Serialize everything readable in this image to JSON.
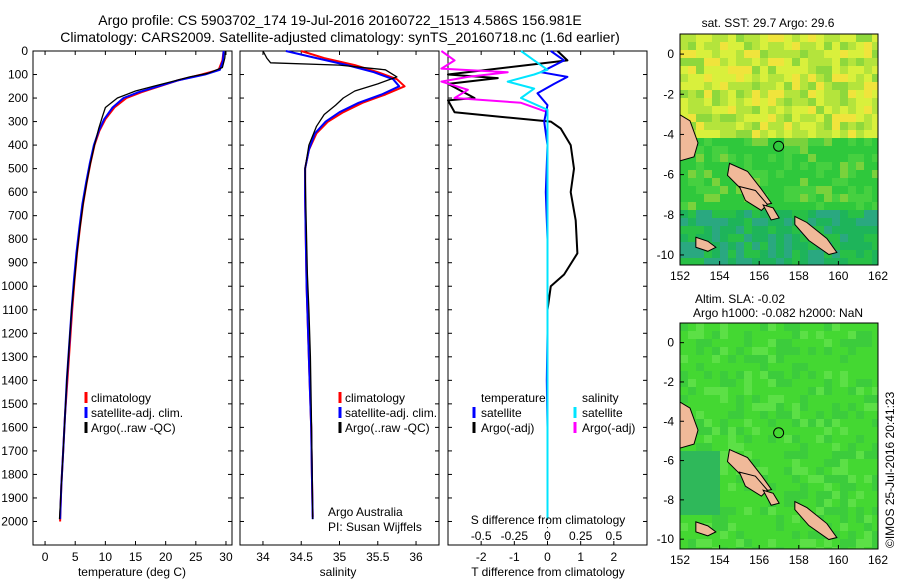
{
  "titles": {
    "line1": "Argo profile: CS 5903702_174 19-Jul-2016 20160722_1513 4.586S 156.981E",
    "line2": "Climatology: CARS2009. Satellite-adjusted climatology: synTS_20160718.nc (1.6d earlier)"
  },
  "colors": {
    "climatology": "#ff0000",
    "satellite": "#0000ff",
    "argo": "#000000",
    "sal_satellite": "#00e5ff",
    "sal_argo": "#ff00ff",
    "land": "#f0b999",
    "map_sst_base": "#7fd23c",
    "map_sla_base": "#44d832"
  },
  "depth_axis": {
    "ticks": [
      0,
      100,
      200,
      300,
      400,
      500,
      600,
      700,
      800,
      900,
      1000,
      1100,
      1200,
      1300,
      1400,
      1500,
      1600,
      1700,
      1800,
      1900,
      2000
    ],
    "ylim": [
      0,
      2100
    ]
  },
  "panels": {
    "temperature": {
      "xlabel": "temperature (deg C)",
      "xticks": [
        0,
        5,
        10,
        15,
        20,
        25,
        30
      ],
      "xlim": [
        -2,
        31
      ],
      "legend": [
        "climatology",
        "satellite-adj. clim.",
        "Argo(..raw -QC)"
      ]
    },
    "salinity": {
      "xlabel": "salinity",
      "xticks": [
        34,
        34.5,
        35,
        35.5,
        36
      ],
      "xlim": [
        33.7,
        36.3
      ],
      "legend": [
        "climatology",
        "satellite-adj. clim.",
        "Argo(..raw -QC)"
      ],
      "credit1": "Argo Australia",
      "credit2": "PI: Susan Wijffels"
    },
    "difference": {
      "xlabel": "T difference from climatology",
      "xticks": [
        -2,
        -1,
        0,
        1,
        2
      ],
      "top_label": "S difference from climatology",
      "top_ticks": [
        "-0.5",
        "-0.25",
        "0",
        "0.25",
        "0.5"
      ],
      "xlim": [
        -3,
        3
      ],
      "legend_t_title": "temperature",
      "legend_s_title": "salinity",
      "legend_t": [
        "satellite",
        "Argo(-adj)"
      ],
      "legend_s": [
        "satellite",
        "Argo(-adj)"
      ]
    }
  },
  "maps": {
    "sst": {
      "title": "sat. SST: 29.7  Argo: 29.6",
      "xticks": [
        "152",
        "154",
        "156",
        "158",
        "160",
        "162"
      ],
      "yticks": [
        "0",
        "-2",
        "-4",
        "-6",
        "-8",
        "-10"
      ]
    },
    "sla": {
      "title1": "Altim. SLA: -0.02",
      "title2": "Argo h1000: -0.082 h2000: NaN",
      "xticks": [
        "152",
        "154",
        "156",
        "158",
        "160",
        "162"
      ],
      "yticks": [
        "0",
        "-2",
        "-4",
        "-6",
        "-8",
        "-10"
      ]
    },
    "float_position": {
      "lon": 156.981,
      "lat": -4.586
    },
    "lon_range": [
      152,
      162
    ],
    "lat_range": [
      -10.5,
      1
    ]
  },
  "credit": "©IMOS 25-Jul-2016 20:41:23",
  "chart_data": {
    "type": "line",
    "temperature": {
      "climatology": [
        [
          29.6,
          0
        ],
        [
          29.4,
          40
        ],
        [
          28.8,
          80
        ],
        [
          26,
          100
        ],
        [
          22,
          125
        ],
        [
          19,
          150
        ],
        [
          16,
          175
        ],
        [
          13.5,
          200
        ],
        [
          11.5,
          240
        ],
        [
          10,
          290
        ],
        [
          9,
          340
        ],
        [
          8.2,
          400
        ],
        [
          7.5,
          480
        ],
        [
          6.9,
          560
        ],
        [
          6.3,
          650
        ],
        [
          5.8,
          750
        ],
        [
          5.3,
          860
        ],
        [
          4.9,
          970
        ],
        [
          4.5,
          1100
        ],
        [
          4.1,
          1250
        ],
        [
          3.7,
          1400
        ],
        [
          3.3,
          1550
        ],
        [
          3,
          1700
        ],
        [
          2.7,
          1850
        ],
        [
          2.5,
          2000
        ]
      ],
      "satellite": [
        [
          29.6,
          0
        ],
        [
          29.5,
          40
        ],
        [
          29,
          80
        ],
        [
          26.5,
          100
        ],
        [
          22,
          125
        ],
        [
          18.8,
          150
        ],
        [
          15.5,
          175
        ],
        [
          13,
          200
        ],
        [
          11.2,
          240
        ],
        [
          9.8,
          290
        ],
        [
          8.9,
          340
        ],
        [
          8.1,
          400
        ],
        [
          7.4,
          480
        ],
        [
          6.8,
          560
        ],
        [
          6.2,
          650
        ],
        [
          5.7,
          750
        ],
        [
          5.2,
          860
        ],
        [
          4.8,
          970
        ],
        [
          4.4,
          1100
        ],
        [
          4,
          1250
        ],
        [
          3.6,
          1400
        ],
        [
          3.3,
          1550
        ],
        [
          3,
          1700
        ],
        [
          2.7,
          1850
        ],
        [
          2.5,
          1990
        ]
      ],
      "argo": [
        [
          29.9,
          0
        ],
        [
          29.8,
          30
        ],
        [
          29.4,
          70
        ],
        [
          27,
          95
        ],
        [
          24,
          110
        ],
        [
          21,
          130
        ],
        [
          18,
          150
        ],
        [
          15,
          170
        ],
        [
          12,
          200
        ],
        [
          10,
          240
        ],
        [
          9.5,
          280
        ],
        [
          8.9,
          330
        ],
        [
          8.2,
          400
        ],
        [
          7.5,
          480
        ],
        [
          6.9,
          560
        ],
        [
          6.3,
          650
        ],
        [
          5.8,
          750
        ],
        [
          5.3,
          860
        ],
        [
          4.9,
          970
        ],
        [
          4.4,
          1100
        ],
        [
          4,
          1250
        ],
        [
          3.6,
          1400
        ],
        [
          3.3,
          1550
        ],
        [
          3,
          1700
        ],
        [
          2.7,
          1850
        ],
        [
          2.4,
          1990
        ]
      ]
    },
    "salinity": {
      "climatology": [
        [
          34.5,
          0
        ],
        [
          34.8,
          30
        ],
        [
          35.2,
          60
        ],
        [
          35.5,
          90
        ],
        [
          35.75,
          120
        ],
        [
          35.85,
          150
        ],
        [
          35.6,
          185
        ],
        [
          35.3,
          220
        ],
        [
          35.05,
          260
        ],
        [
          34.85,
          300
        ],
        [
          34.7,
          350
        ],
        [
          34.6,
          420
        ],
        [
          34.55,
          500
        ],
        [
          34.55,
          620
        ],
        [
          34.56,
          800
        ],
        [
          34.57,
          1000
        ],
        [
          34.59,
          1200
        ],
        [
          34.61,
          1400
        ],
        [
          34.63,
          1600
        ],
        [
          34.64,
          1800
        ],
        [
          34.65,
          1980
        ]
      ],
      "satellite": [
        [
          34.3,
          0
        ],
        [
          34.7,
          30
        ],
        [
          35.1,
          60
        ],
        [
          35.45,
          90
        ],
        [
          35.7,
          120
        ],
        [
          35.78,
          150
        ],
        [
          35.55,
          185
        ],
        [
          35.25,
          220
        ],
        [
          35,
          260
        ],
        [
          34.82,
          300
        ],
        [
          34.68,
          350
        ],
        [
          34.6,
          420
        ],
        [
          34.55,
          500
        ],
        [
          34.55,
          620
        ],
        [
          34.56,
          800
        ],
        [
          34.57,
          1000
        ],
        [
          34.59,
          1200
        ],
        [
          34.61,
          1400
        ],
        [
          34.63,
          1600
        ],
        [
          34.64,
          1800
        ],
        [
          34.65,
          1990
        ]
      ],
      "argo": [
        [
          34,
          0
        ],
        [
          34.05,
          30
        ],
        [
          34.1,
          50
        ],
        [
          35,
          60
        ],
        [
          35.6,
          80
        ],
        [
          35.75,
          110
        ],
        [
          35.5,
          140
        ],
        [
          35.2,
          170
        ],
        [
          35.05,
          200
        ],
        [
          34.95,
          230
        ],
        [
          34.8,
          270
        ],
        [
          34.7,
          320
        ],
        [
          34.6,
          400
        ],
        [
          34.55,
          500
        ],
        [
          34.56,
          650
        ],
        [
          34.57,
          800
        ],
        [
          34.58,
          950
        ],
        [
          34.6,
          1100
        ],
        [
          34.62,
          1300
        ],
        [
          34.63,
          1500
        ],
        [
          34.64,
          1700
        ],
        [
          34.65,
          1990
        ]
      ]
    },
    "t_difference": {
      "satellite": [
        [
          0.1,
          0
        ],
        [
          0.5,
          40
        ],
        [
          -0.2,
          90
        ],
        [
          0.6,
          110
        ],
        [
          0.2,
          140
        ],
        [
          -0.3,
          180
        ],
        [
          0,
          230
        ],
        [
          -0.1,
          300
        ],
        [
          0,
          400
        ],
        [
          -0.05,
          600
        ],
        [
          0,
          800
        ],
        [
          0,
          1000
        ],
        [
          0,
          1200
        ],
        [
          -0.02,
          1400
        ],
        [
          0,
          1600
        ],
        [
          0,
          1990
        ]
      ],
      "argo": [
        [
          0.3,
          0
        ],
        [
          0.6,
          40
        ],
        [
          -3,
          100
        ],
        [
          -1.5,
          115
        ],
        [
          -3,
          140
        ],
        [
          -2.2,
          200
        ],
        [
          -3,
          210
        ],
        [
          -2.8,
          260
        ],
        [
          -1.4,
          280
        ],
        [
          0.1,
          300
        ],
        [
          0.4,
          330
        ],
        [
          0.7,
          400
        ],
        [
          0.8,
          500
        ],
        [
          0.7,
          600
        ],
        [
          0.85,
          720
        ],
        [
          0.9,
          860
        ],
        [
          0.5,
          950
        ],
        [
          0.1,
          1000
        ],
        [
          0,
          1100
        ],
        [
          0,
          1200
        ]
      ]
    },
    "s_difference": {
      "satellite": [
        [
          -0.2,
          0
        ],
        [
          -0.1,
          40
        ],
        [
          0,
          80
        ],
        [
          -0.1,
          100
        ],
        [
          -0.3,
          130
        ],
        [
          -0.1,
          160
        ],
        [
          -0.2,
          200
        ],
        [
          0,
          250
        ],
        [
          0,
          400
        ],
        [
          0,
          800
        ],
        [
          0,
          1200
        ],
        [
          0,
          1600
        ],
        [
          0,
          1990
        ]
      ],
      "argo": [
        [
          -0.8,
          0
        ],
        [
          -0.7,
          40
        ],
        [
          -0.8,
          75
        ],
        [
          -0.3,
          90
        ],
        [
          -0.6,
          110
        ],
        [
          -0.8,
          130
        ],
        [
          -0.6,
          165
        ],
        [
          -0.7,
          200
        ],
        [
          -0.2,
          220
        ],
        [
          0,
          260
        ]
      ]
    }
  }
}
